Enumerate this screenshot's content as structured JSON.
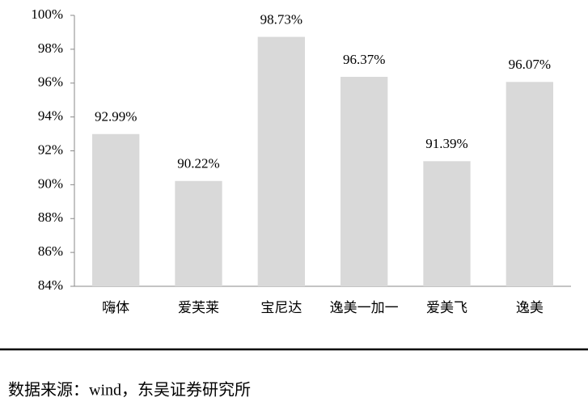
{
  "chart_data": {
    "type": "bar",
    "categories": [
      "嗨体",
      "爱芙莱",
      "宝尼达",
      "逸美一加一",
      "爱美飞",
      "逸美"
    ],
    "values": [
      92.99,
      90.22,
      98.73,
      96.37,
      91.39,
      96.07
    ],
    "value_labels": [
      "92.99%",
      "90.22%",
      "98.73%",
      "96.37%",
      "91.39%",
      "96.07%"
    ],
    "color": "#d9d9d9",
    "ylim": [
      84,
      100
    ],
    "yticks": [
      {
        "value": 84,
        "label": "84%"
      },
      {
        "value": 86,
        "label": "86%"
      },
      {
        "value": 88,
        "label": "88%"
      },
      {
        "value": 90,
        "label": "90%"
      },
      {
        "value": 92,
        "label": "92%"
      },
      {
        "value": 94,
        "label": "94%"
      },
      {
        "value": 96,
        "label": "96%"
      },
      {
        "value": 98,
        "label": "98%"
      },
      {
        "value": 100,
        "label": "100%"
      }
    ],
    "grid": false,
    "source": "数据来源：wind，东吴证券研究所"
  }
}
